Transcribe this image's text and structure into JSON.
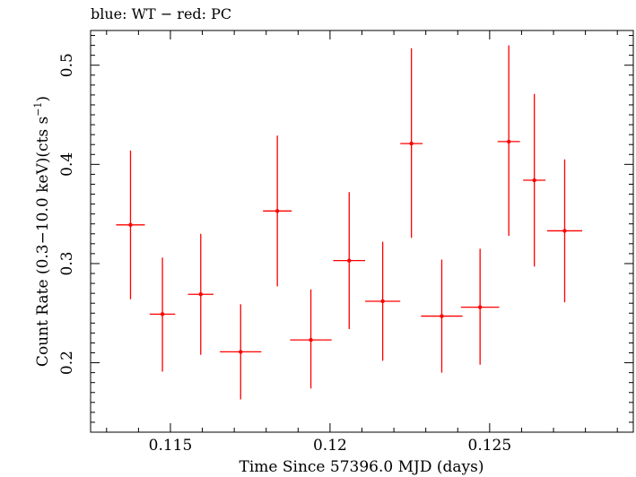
{
  "chart_data": {
    "type": "scatter",
    "title": "blue: WT − red: PC",
    "xlabel": "Time Since 57396.0 MJD (days)",
    "ylabel_main": "Count Rate (0.3−10.0 keV)(cts s",
    "ylabel_sup": "−1",
    "ylabel_close": ")",
    "xlim": [
      0.1125,
      0.1295
    ],
    "ylim": [
      0.13,
      0.535
    ],
    "x_ticks": [
      {
        "value": 0.115,
        "label": "0.115"
      },
      {
        "value": 0.12,
        "label": "0.12"
      },
      {
        "value": 0.125,
        "label": "0.125"
      }
    ],
    "y_ticks": [
      {
        "value": 0.2,
        "label": "0.2"
      },
      {
        "value": 0.3,
        "label": "0.3"
      },
      {
        "value": 0.4,
        "label": "0.4"
      },
      {
        "value": 0.5,
        "label": "0.5"
      }
    ],
    "grid": false,
    "series": [
      {
        "color": "#ff0000",
        "points": [
          {
            "x": 0.11375,
            "xerr": 0.00045,
            "y": 0.339,
            "ylo": 0.264,
            "yhi": 0.414
          },
          {
            "x": 0.11475,
            "xerr": 0.0004,
            "y": 0.249,
            "ylo": 0.191,
            "yhi": 0.306
          },
          {
            "x": 0.11595,
            "xerr": 0.0004,
            "y": 0.269,
            "ylo": 0.208,
            "yhi": 0.33
          },
          {
            "x": 0.1172,
            "xerr": 0.00065,
            "y": 0.211,
            "ylo": 0.163,
            "yhi": 0.259
          },
          {
            "x": 0.11835,
            "xerr": 0.00045,
            "y": 0.353,
            "ylo": 0.277,
            "yhi": 0.429
          },
          {
            "x": 0.1194,
            "xerr": 0.00065,
            "y": 0.223,
            "ylo": 0.174,
            "yhi": 0.274
          },
          {
            "x": 0.1206,
            "xerr": 0.0005,
            "y": 0.303,
            "ylo": 0.234,
            "yhi": 0.372
          },
          {
            "x": 0.12165,
            "xerr": 0.00055,
            "y": 0.262,
            "ylo": 0.202,
            "yhi": 0.322
          },
          {
            "x": 0.12255,
            "xerr": 0.00035,
            "y": 0.421,
            "ylo": 0.326,
            "yhi": 0.517
          },
          {
            "x": 0.1235,
            "xerr": 0.00065,
            "y": 0.247,
            "ylo": 0.19,
            "yhi": 0.304
          },
          {
            "x": 0.1247,
            "xerr": 0.0006,
            "y": 0.256,
            "ylo": 0.198,
            "yhi": 0.315
          },
          {
            "x": 0.1256,
            "xerr": 0.00035,
            "y": 0.423,
            "ylo": 0.328,
            "yhi": 0.52
          },
          {
            "x": 0.1264,
            "xerr": 0.00035,
            "y": 0.384,
            "ylo": 0.297,
            "yhi": 0.471
          },
          {
            "x": 0.12735,
            "xerr": 0.00055,
            "y": 0.333,
            "ylo": 0.261,
            "yhi": 0.405
          }
        ]
      }
    ]
  }
}
